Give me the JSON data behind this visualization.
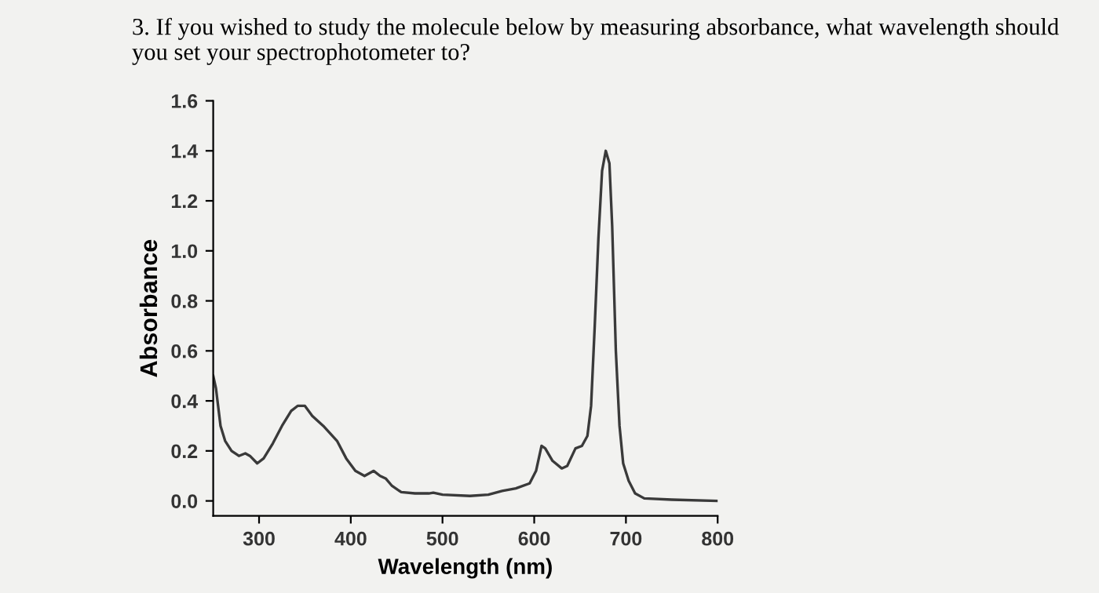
{
  "chart_data": {
    "type": "line",
    "title": "3. If you wished to study the molecule below by measuring absorbance, what wavelength should you set your spectrophotometer to?",
    "xlabel": "Wavelength (nm)",
    "ylabel": "Absorbance",
    "series": [
      {
        "color": "#3a3a3a",
        "x": [
          250,
          253,
          258,
          263,
          270,
          278,
          285,
          290,
          298,
          305,
          315,
          325,
          335,
          342,
          350,
          358,
          370,
          385,
          395,
          405,
          415,
          425,
          432,
          438,
          445,
          455,
          470,
          485,
          490,
          500,
          530,
          550,
          565,
          580,
          595,
          602,
          608,
          612,
          620,
          630,
          636,
          645,
          652,
          658,
          662,
          666,
          670,
          674,
          678,
          682,
          685,
          689,
          693,
          697,
          703,
          710,
          720,
          750,
          800
        ],
        "values": [
          0.5,
          0.45,
          0.3,
          0.24,
          0.2,
          0.18,
          0.19,
          0.18,
          0.15,
          0.17,
          0.23,
          0.3,
          0.36,
          0.38,
          0.38,
          0.34,
          0.3,
          0.24,
          0.17,
          0.12,
          0.1,
          0.12,
          0.1,
          0.09,
          0.06,
          0.035,
          0.03,
          0.03,
          0.033,
          0.025,
          0.02,
          0.025,
          0.04,
          0.05,
          0.07,
          0.12,
          0.22,
          0.21,
          0.16,
          0.13,
          0.14,
          0.21,
          0.22,
          0.26,
          0.38,
          0.7,
          1.05,
          1.32,
          1.4,
          1.35,
          1.1,
          0.6,
          0.3,
          0.15,
          0.08,
          0.03,
          0.01,
          0.005,
          0.0
        ]
      }
    ],
    "xlim": [
      250,
      800
    ],
    "ylim": [
      -0.06,
      1.6
    ],
    "xticks": [
      300,
      400,
      500,
      600,
      700,
      800
    ],
    "yticks": [
      {
        "value": 0.0,
        "label": "0.0"
      },
      {
        "value": 0.2,
        "label": "0.2"
      },
      {
        "value": 0.4,
        "label": "0.4"
      },
      {
        "value": 0.6,
        "label": "0.6"
      },
      {
        "value": 0.8,
        "label": "0.8"
      },
      {
        "value": 1.0,
        "label": "1.0"
      },
      {
        "value": 1.2,
        "label": "1.2"
      },
      {
        "value": 1.4,
        "label": "1.4"
      },
      {
        "value": 1.6,
        "label": "1.6"
      }
    ],
    "grid": false,
    "marker": "none",
    "line_style": "solid"
  }
}
